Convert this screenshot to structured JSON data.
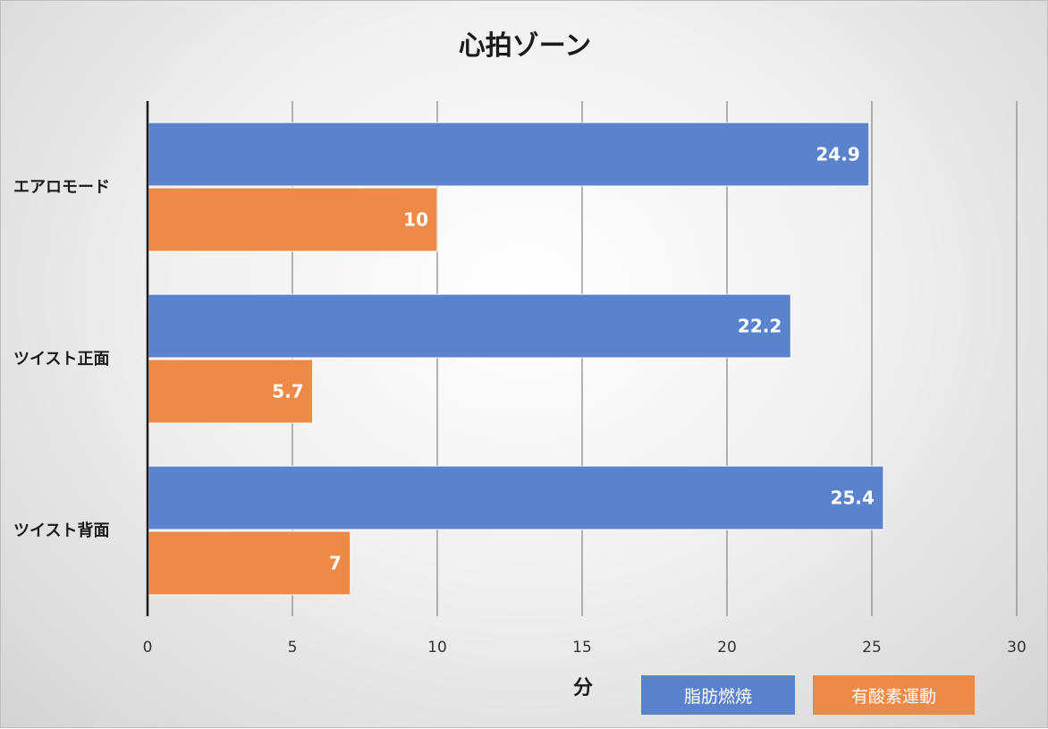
{
  "chart_data": {
    "type": "bar",
    "orientation": "horizontal",
    "title": "心拍ゾーン",
    "xlabel": "分",
    "ylabel": "",
    "categories": [
      "エアロモード",
      "ツイスト正面",
      "ツイスト背面"
    ],
    "xlim": [
      0,
      30
    ],
    "ticks": [
      0,
      5,
      10,
      15,
      20,
      25,
      30
    ],
    "grid": "vertical",
    "legend_position": "bottom-right",
    "series": [
      {
        "name": "脂肪燃焼",
        "color": "#5b82cd",
        "values": [
          24.9,
          22.2,
          25.4
        ],
        "labels": [
          "24.9",
          "22.2",
          "25.4"
        ]
      },
      {
        "name": "有酸素運動",
        "color": "#ed8a47",
        "values": [
          10,
          5.7,
          7
        ],
        "labels": [
          "10",
          "5.7",
          "7"
        ]
      }
    ]
  }
}
